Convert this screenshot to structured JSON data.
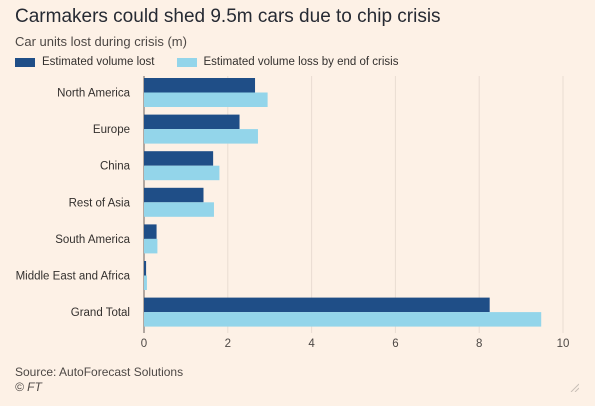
{
  "header": {
    "title": "Carmakers could shed 9.5m cars due to chip crisis",
    "subtitle": "Car units lost during crisis (m)"
  },
  "footer": {
    "source": "Source: AutoForecast Solutions",
    "credit": "© FT"
  },
  "icons": {
    "resize": "resize-corner-icon"
  },
  "chart_data": {
    "type": "bar",
    "orientation": "horizontal",
    "categories": [
      "North America",
      "Europe",
      "China",
      "Rest of Asia",
      "South America",
      "Middle East and Africa",
      "Grand Total"
    ],
    "series": [
      {
        "name": "Estimated volume lost",
        "color": "#1f4e87",
        "values": [
          2.65,
          2.28,
          1.65,
          1.42,
          0.3,
          0.05,
          8.25
        ]
      },
      {
        "name": "Estimated volume loss by end of crisis",
        "color": "#93d5ea",
        "values": [
          2.95,
          2.72,
          1.8,
          1.67,
          0.32,
          0.07,
          9.48
        ]
      }
    ],
    "xlim": [
      0,
      10
    ],
    "xticks": [
      "0",
      "2",
      "4",
      "6",
      "8",
      "10"
    ],
    "grid": true,
    "legend_position": "top-left"
  }
}
